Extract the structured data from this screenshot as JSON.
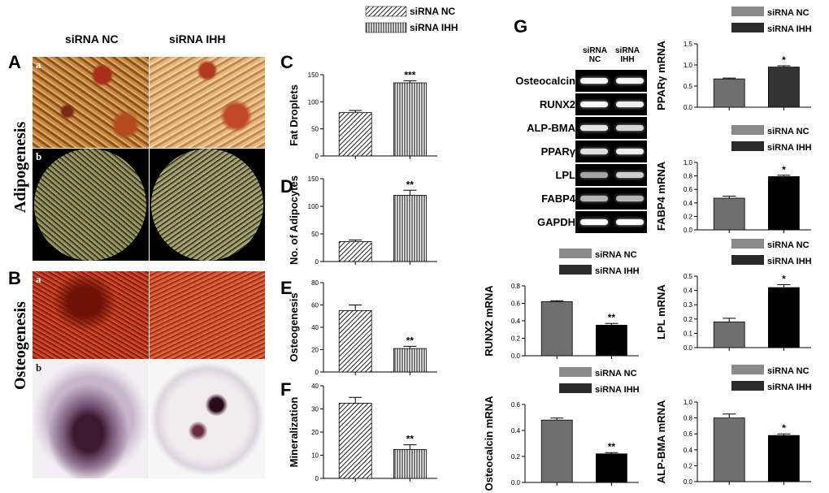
{
  "panels": {
    "A": "A",
    "B": "B",
    "C": "C",
    "D": "D",
    "E": "E",
    "F": "F",
    "G": "G"
  },
  "photo_columns": [
    "siRNA  NC",
    "siRNA IHH"
  ],
  "side_labels": {
    "adipogenesis": "Adipogenesis",
    "osteogenesis": "Osteogenesis"
  },
  "sub_labels": [
    "a",
    "b",
    "a",
    "b"
  ],
  "top_legend": [
    "siRNA  NC",
    "siRNA IHH"
  ],
  "gel": {
    "lanes": [
      "siRNA NC",
      "siRNA IHH"
    ],
    "genes": [
      "Osteocalcin",
      "RUNX2",
      "ALP-BMA",
      "PPARγ",
      "LPL",
      "FABP4",
      "GAPDH"
    ],
    "band_strength": [
      [
        0.95,
        0.95
      ],
      [
        0.95,
        0.9
      ],
      [
        0.85,
        0.75
      ],
      [
        0.8,
        0.9
      ],
      [
        0.45,
        0.7
      ],
      [
        0.55,
        0.55
      ],
      [
        0.98,
        0.98
      ]
    ]
  },
  "chart_data": [
    {
      "id": "C",
      "type": "bar",
      "categories": [
        "siRNA NC",
        "siRNA IHH"
      ],
      "values": [
        80,
        135
      ],
      "errors": [
        4,
        4
      ],
      "ylabel": "Fat Droplets",
      "ylim": [
        0,
        150
      ],
      "yticks": [
        0,
        50,
        100,
        150
      ],
      "significance": "***"
    },
    {
      "id": "D",
      "type": "bar",
      "categories": [
        "siRNA NC",
        "siRNA IHH"
      ],
      "values": [
        36,
        120
      ],
      "errors": [
        3,
        9
      ],
      "ylabel": "No. of Adipocytes",
      "ylim": [
        0,
        150
      ],
      "yticks": [
        0,
        50,
        100,
        150
      ],
      "significance": "**"
    },
    {
      "id": "E",
      "type": "bar",
      "categories": [
        "siRNA NC",
        "siRNA IHH"
      ],
      "values": [
        55,
        21
      ],
      "errors": [
        5,
        2
      ],
      "ylabel": "Osteogenesis",
      "ylim": [
        0,
        80
      ],
      "yticks": [
        0,
        20,
        40,
        60,
        80
      ],
      "significance": "**"
    },
    {
      "id": "F",
      "type": "bar",
      "categories": [
        "siRNA NC",
        "siRNA IHH"
      ],
      "values": [
        32.5,
        12.5
      ],
      "errors": [
        2.5,
        2
      ],
      "ylabel": "Mineralization",
      "ylim": [
        0,
        40
      ],
      "yticks": [
        0,
        10,
        20,
        30,
        40
      ],
      "significance": "**"
    },
    {
      "id": "PPARG",
      "type": "bar",
      "categories": [
        "siRNA NC",
        "siRNA IHH"
      ],
      "values": [
        0.67,
        0.95
      ],
      "errors": [
        0.02,
        0.03
      ],
      "ylabel": "PPARγ mRNA",
      "ylim": [
        0,
        1.5
      ],
      "yticks": [
        0.0,
        0.5,
        1.0,
        1.5
      ],
      "significance": "*",
      "legend": [
        "siRNA NC",
        "siRNA IHH"
      ]
    },
    {
      "id": "FABP4",
      "type": "bar",
      "categories": [
        "siRNA NC",
        "siRNA IHH"
      ],
      "values": [
        0.47,
        0.79
      ],
      "errors": [
        0.03,
        0.02
      ],
      "ylabel": "FABP4  mRNA",
      "ylim": [
        0,
        1.0
      ],
      "yticks": [
        0.0,
        0.2,
        0.4,
        0.6,
        0.8,
        1.0
      ],
      "significance": "*",
      "legend": [
        "siRNA  NC",
        "siRNA IHH"
      ]
    },
    {
      "id": "RUNX2",
      "type": "bar",
      "categories": [
        "siRNA NC",
        "siRNA IHH"
      ],
      "values": [
        0.62,
        0.35
      ],
      "errors": [
        0.01,
        0.02
      ],
      "ylabel": "RUNX2  mRNA",
      "ylim": [
        0,
        0.8
      ],
      "yticks": [
        0.0,
        0.2,
        0.4,
        0.6,
        0.8
      ],
      "significance": "**",
      "legend": [
        "siRNA  NC",
        "siRNA IHH"
      ]
    },
    {
      "id": "LPL",
      "type": "bar",
      "categories": [
        "siRNA NC",
        "siRNA IHH"
      ],
      "values": [
        0.18,
        0.42
      ],
      "errors": [
        0.025,
        0.02
      ],
      "ylabel": "LPL  mRNA",
      "ylim": [
        0,
        0.5
      ],
      "yticks": [
        0.0,
        0.1,
        0.2,
        0.3,
        0.4,
        0.5
      ],
      "significance": "*",
      "legend": [
        "siRNA  NC",
        "siRNA IHH"
      ]
    },
    {
      "id": "OCN",
      "type": "bar",
      "categories": [
        "siRNA NC",
        "siRNA IHH"
      ],
      "values": [
        0.48,
        0.22
      ],
      "errors": [
        0.015,
        0.01
      ],
      "ylabel": "Osteocalcin  mRNA",
      "ylim": [
        0,
        0.6
      ],
      "yticks": [
        0.0,
        0.2,
        0.4,
        0.6
      ],
      "significance": "**",
      "legend": [
        "siRNA NC",
        "siRNA IHH"
      ]
    },
    {
      "id": "ALP",
      "type": "bar",
      "categories": [
        "siRNA NC",
        "siRNA IHH"
      ],
      "values": [
        0.8,
        0.58
      ],
      "errors": [
        0.05,
        0.02
      ],
      "ylabel": "ALP-BMA  mRNA",
      "ylim": [
        0,
        1.0
      ],
      "yticks": [
        0.0,
        0.2,
        0.4,
        0.6,
        0.8,
        1.0
      ],
      "significance": "*",
      "legend": [
        "siRNA  NC",
        "siRNA IHH"
      ]
    }
  ]
}
